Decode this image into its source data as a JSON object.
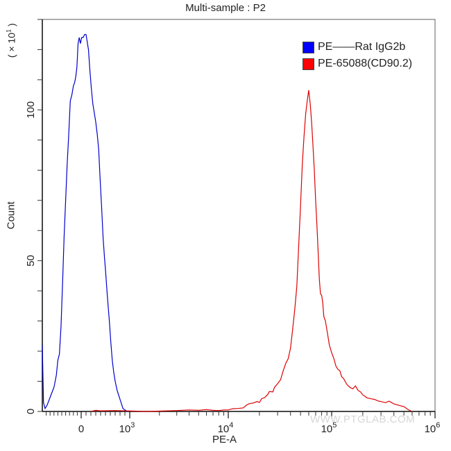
{
  "chart_data": {
    "type": "line",
    "title": "Multi-sample : P2",
    "xlabel": "PE-A",
    "ylabel": "Count",
    "y_multiplier_label": "(× 10¹)",
    "xscale": "biexponential",
    "x_ticks": [
      {
        "value": 0,
        "label": "0"
      },
      {
        "value": 1000,
        "label": "10",
        "exp": "3"
      },
      {
        "value": 10000,
        "label": "10",
        "exp": "4"
      },
      {
        "value": 100000,
        "label": "10",
        "exp": "5"
      },
      {
        "value": 1000000,
        "label": "10",
        "exp": "6"
      }
    ],
    "y_ticks": [
      0,
      50,
      100
    ],
    "ylim": [
      0,
      130
    ],
    "grid": false,
    "legend_position": "top-right",
    "series": [
      {
        "name": "PE——Rat IgG2b",
        "color": "#0000cc",
        "points": [
          [
            -1000,
            22
          ],
          [
            -970,
            3
          ],
          [
            -930,
            1
          ],
          [
            -880,
            2
          ],
          [
            -820,
            4
          ],
          [
            -760,
            6
          ],
          [
            -700,
            8
          ],
          [
            -640,
            12
          ],
          [
            -600,
            17
          ],
          [
            -560,
            19
          ],
          [
            -520,
            28
          ],
          [
            -480,
            42
          ],
          [
            -440,
            58
          ],
          [
            -400,
            70
          ],
          [
            -360,
            82
          ],
          [
            -320,
            92
          ],
          [
            -280,
            103
          ],
          [
            -240,
            105
          ],
          [
            -200,
            108
          ],
          [
            -170,
            109
          ],
          [
            -140,
            111
          ],
          [
            -110,
            114
          ],
          [
            -80,
            122
          ],
          [
            -50,
            124
          ],
          [
            -20,
            122
          ],
          [
            10,
            124
          ],
          [
            40,
            124
          ],
          [
            70,
            125
          ],
          [
            100,
            125
          ],
          [
            120,
            123
          ],
          [
            150,
            120
          ],
          [
            180,
            113
          ],
          [
            210,
            107
          ],
          [
            240,
            102
          ],
          [
            270,
            99
          ],
          [
            300,
            96
          ],
          [
            330,
            92
          ],
          [
            360,
            87
          ],
          [
            390,
            77
          ],
          [
            420,
            68
          ],
          [
            450,
            58
          ],
          [
            480,
            51
          ],
          [
            500,
            47
          ],
          [
            540,
            38
          ],
          [
            580,
            30
          ],
          [
            610,
            23
          ],
          [
            640,
            17
          ],
          [
            670,
            13
          ],
          [
            700,
            10
          ],
          [
            740,
            7
          ],
          [
            780,
            5
          ],
          [
            820,
            3
          ],
          [
            860,
            1
          ],
          [
            900,
            0.5
          ],
          [
            950,
            0
          ]
        ]
      },
      {
        "name": "PE-65088(CD90.2)",
        "color": "#dd0000",
        "points": [
          [
            200,
            0
          ],
          [
            300,
            0.4
          ],
          [
            400,
            0.2
          ],
          [
            700,
            0.3
          ],
          [
            1500,
            0
          ],
          [
            3000,
            0.3
          ],
          [
            4000,
            0.5
          ],
          [
            5000,
            0.4
          ],
          [
            6000,
            0.6
          ],
          [
            7000,
            0.4
          ],
          [
            8000,
            0.3
          ],
          [
            9000,
            0.5
          ],
          [
            10000,
            0.5
          ],
          [
            11000,
            0.9
          ],
          [
            12500,
            1.0
          ],
          [
            14000,
            1.2
          ],
          [
            15000,
            2.1
          ],
          [
            16000,
            2.6
          ],
          [
            17500,
            2.8
          ],
          [
            19000,
            3.3
          ],
          [
            20000,
            3.0
          ],
          [
            21000,
            4.2
          ],
          [
            22500,
            4.6
          ],
          [
            24000,
            5.6
          ],
          [
            25000,
            6.6
          ],
          [
            27000,
            6.5
          ],
          [
            28000,
            8.0
          ],
          [
            30000,
            9.2
          ],
          [
            32000,
            10.5
          ],
          [
            34000,
            13.5
          ],
          [
            36000,
            16.0
          ],
          [
            38000,
            17.5
          ],
          [
            40000,
            21.0
          ],
          [
            42000,
            27.5
          ],
          [
            44000,
            34.0
          ],
          [
            46000,
            41.5
          ],
          [
            48000,
            55.0
          ],
          [
            50000,
            68.0
          ],
          [
            52000,
            82.0
          ],
          [
            54000,
            91.0
          ],
          [
            56000,
            98.5
          ],
          [
            58000,
            103.0
          ],
          [
            60000,
            106.5
          ],
          [
            62000,
            102.0
          ],
          [
            64000,
            96.0
          ],
          [
            66000,
            88.0
          ],
          [
            68000,
            80.0
          ],
          [
            70000,
            70.0
          ],
          [
            72000,
            62.0
          ],
          [
            74000,
            53.0
          ],
          [
            76000,
            44.0
          ],
          [
            78000,
            39.0
          ],
          [
            80000,
            38.5
          ],
          [
            82000,
            36.0
          ],
          [
            84000,
            31.5
          ],
          [
            87000,
            30.0
          ],
          [
            90000,
            27.0
          ],
          [
            95000,
            22.0
          ],
          [
            100000,
            19.5
          ],
          [
            105000,
            17.5
          ],
          [
            110000,
            15.0
          ],
          [
            115000,
            14.0
          ],
          [
            120000,
            13.5
          ],
          [
            125000,
            11.5
          ],
          [
            130000,
            11.0
          ],
          [
            140000,
            9.0
          ],
          [
            150000,
            8.0
          ],
          [
            160000,
            7.5
          ],
          [
            170000,
            8.5
          ],
          [
            180000,
            7.0
          ],
          [
            190000,
            6.5
          ],
          [
            200000,
            5.5
          ],
          [
            220000,
            4.5
          ],
          [
            240000,
            4.2
          ],
          [
            260000,
            4.0
          ],
          [
            280000,
            3.5
          ],
          [
            300000,
            3.3
          ],
          [
            330000,
            2.9
          ],
          [
            360000,
            3.4
          ],
          [
            400000,
            2.5
          ],
          [
            450000,
            2.0
          ],
          [
            500000,
            1.6
          ],
          [
            550000,
            0.6
          ],
          [
            600000,
            0
          ]
        ]
      }
    ]
  },
  "header": {
    "title": "Multi-sample : P2"
  },
  "axes": {
    "xlabel": "PE-A",
    "ylabel": "Count",
    "y_multiplier": "( × 10",
    "y_multiplier_exp": "1",
    "y_multiplier_close": " )"
  },
  "legend": {
    "items": [
      {
        "label": "PE——Rat IgG2b",
        "color": "#0000ff"
      },
      {
        "label": "PE-65088(CD90.2)",
        "color": "#ff0000"
      }
    ]
  },
  "watermark": "WWW.PTGLAB.COM"
}
